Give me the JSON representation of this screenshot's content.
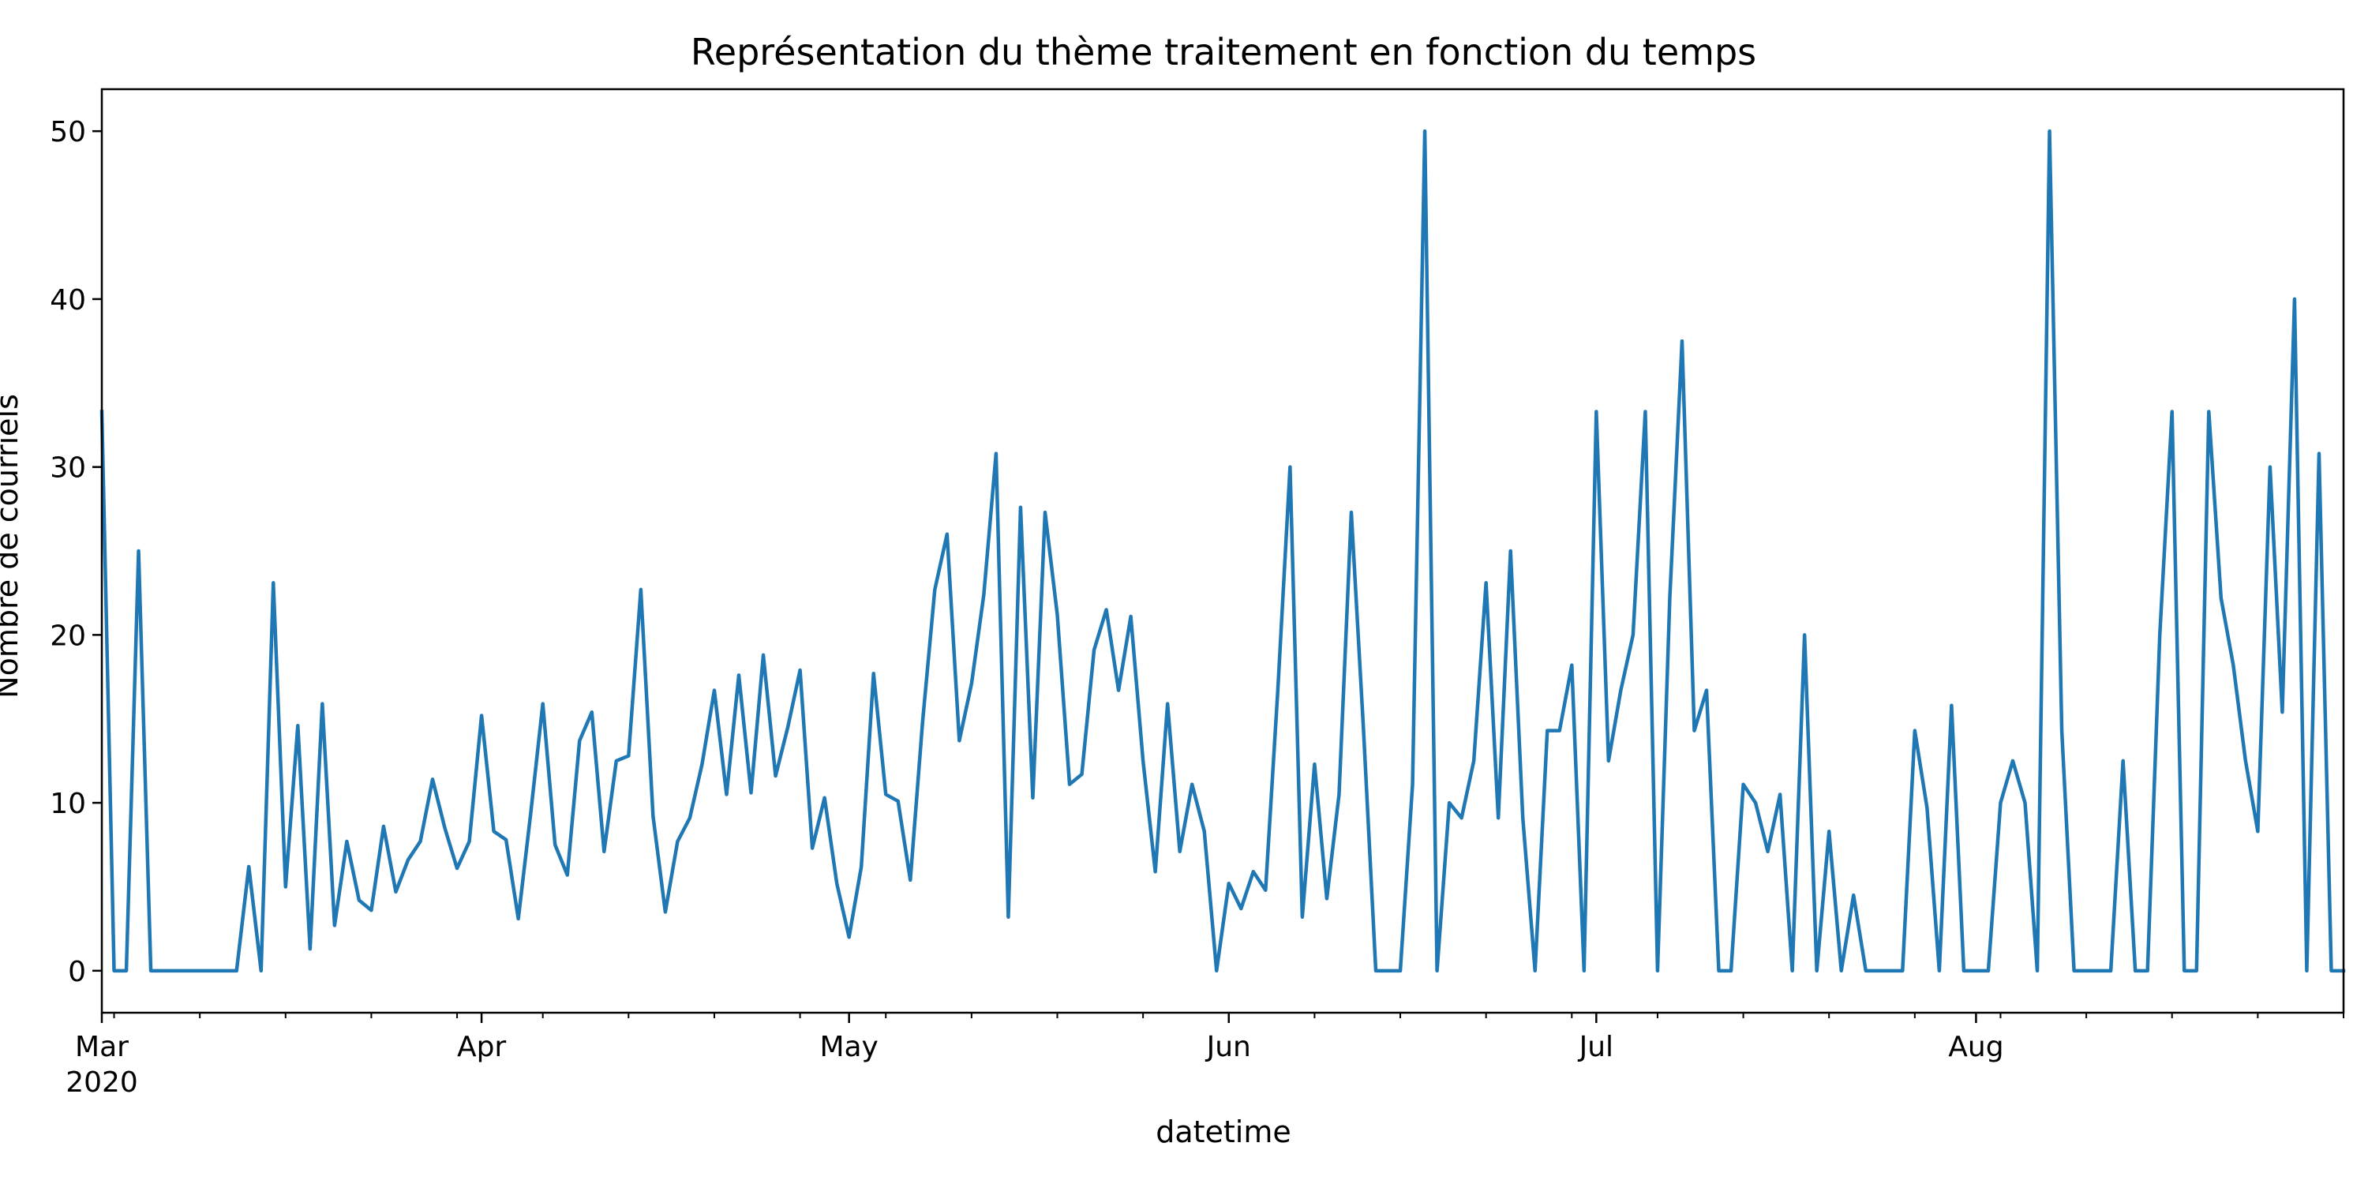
{
  "chart_data": {
    "type": "line",
    "title": "Représentation du thème traitement en fonction du temps",
    "xlabel": "datetime",
    "ylabel": "Nombre de courriels",
    "xlim": [
      "2020-03-01",
      "2020-08-31"
    ],
    "ylim": [
      -2.5,
      52.5
    ],
    "y_ticks": [
      0,
      10,
      20,
      30,
      40,
      50
    ],
    "x_ticks": [
      {
        "date": "2020-03-01",
        "label": "Mar",
        "sublabel": "2020"
      },
      {
        "date": "2020-04-01",
        "label": "Apr"
      },
      {
        "date": "2020-05-01",
        "label": "May"
      },
      {
        "date": "2020-06-01",
        "label": "Jun"
      },
      {
        "date": "2020-07-01",
        "label": "Jul"
      },
      {
        "date": "2020-08-01",
        "label": "Aug"
      }
    ],
    "grid": false,
    "legend": "none",
    "line_color": "#1f77b4",
    "series": [
      {
        "start_date": "2020-03-01",
        "values": [
          33.3,
          0,
          0,
          25,
          0,
          0,
          0,
          0,
          0,
          0,
          0,
          0,
          6.2,
          0,
          23.1,
          5,
          14.6,
          1.3,
          15.9,
          2.7,
          7.7,
          4.2,
          3.6,
          8.6,
          4.7,
          6.6,
          7.7,
          11.4,
          8.5,
          6.1,
          7.7,
          15.2,
          8.3,
          7.8,
          3.1,
          9.3,
          15.9,
          7.5,
          5.7,
          13.7,
          15.4,
          7.1,
          12.5,
          12.8,
          22.7,
          9.2,
          3.5,
          7.7,
          9.1,
          12.3,
          16.7,
          10.5,
          17.6,
          10.6,
          18.8,
          11.6,
          14.5,
          17.9,
          7.3,
          10.3,
          5.2,
          2,
          6.2,
          17.7,
          10.5,
          10.1,
          5.4,
          14.8,
          22.7,
          26,
          13.7,
          17.1,
          22.4,
          30.8,
          3.2,
          27.6,
          10.3,
          27.3,
          21.2,
          11.1,
          11.7,
          19.1,
          21.5,
          16.7,
          21.1,
          12.5,
          5.9,
          15.9,
          7.1,
          11.1,
          8.3,
          0,
          5.2,
          3.7,
          5.9,
          4.8,
          16.7,
          30,
          3.2,
          12.3,
          4.3,
          10.5,
          27.3,
          14.3,
          0,
          0,
          0,
          11.1,
          50,
          0,
          10,
          9.1,
          12.5,
          23.1,
          9.1,
          25,
          9.1,
          0,
          14.3,
          14.3,
          18.2,
          0,
          33.3,
          12.5,
          16.7,
          20,
          33.3,
          0,
          22.2,
          37.5,
          14.3,
          16.7,
          0,
          0,
          11.1,
          10,
          7.1,
          10.5,
          0,
          20,
          0,
          8.3,
          0,
          4.5,
          0,
          0,
          0,
          0,
          14.3,
          9.7,
          0,
          15.8,
          0,
          0,
          0,
          10,
          12.5,
          10,
          0,
          50,
          14.3,
          0,
          0,
          0,
          0,
          12.5,
          0,
          0,
          20,
          33.3,
          0,
          0,
          33.3,
          22.2,
          18.2,
          12.5,
          8.3,
          30,
          15.4,
          40,
          0,
          30.8,
          0,
          0
        ]
      }
    ]
  }
}
